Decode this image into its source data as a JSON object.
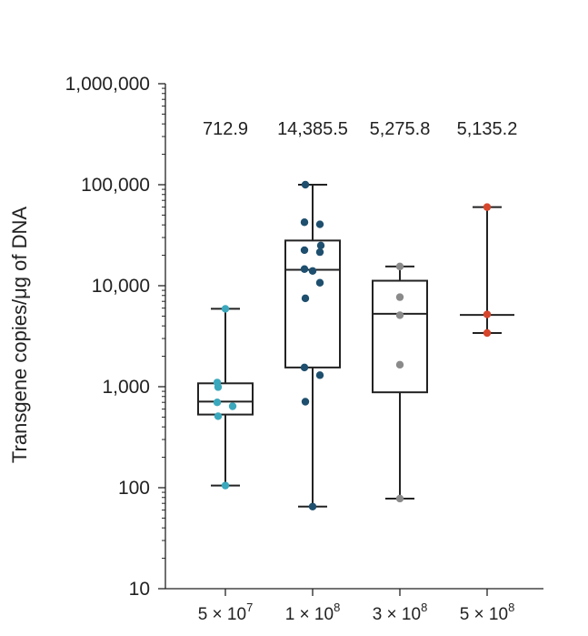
{
  "chart_data": {
    "type": "box",
    "ylabel": "Transgene copies/μg of DNA",
    "yscale": "log",
    "ylim": [
      10,
      1000000
    ],
    "yticks": [
      {
        "value": 10,
        "label": "10"
      },
      {
        "value": 100,
        "label": "100"
      },
      {
        "value": 1000,
        "label": "1,000"
      },
      {
        "value": 10000,
        "label": "10,000"
      },
      {
        "value": 100000,
        "label": "100,000"
      },
      {
        "value": 1000000,
        "label": "1,000,000"
      }
    ],
    "categories": [
      {
        "coef": "5",
        "exp": "7"
      },
      {
        "coef": "1",
        "exp": "8"
      },
      {
        "coef": "3",
        "exp": "8"
      },
      {
        "coef": "5",
        "exp": "8"
      }
    ],
    "medians_labels": [
      "712.9",
      "14,385.5",
      "5,275.8",
      "5,135.2"
    ],
    "groups": [
      {
        "color": "#3aa8bd",
        "box": {
          "whisker_low": 105,
          "q1": 530,
          "median": 712.9,
          "q3": 1080,
          "whisker_high": 5900
        },
        "points": [
          105,
          510,
          640,
          700,
          990,
          1100,
          5900
        ]
      },
      {
        "color": "#1e4f6e",
        "box": {
          "whisker_low": 65,
          "q1": 1550,
          "median": 14385.5,
          "q3": 28000,
          "whisker_high": 100000
        },
        "points": [
          65,
          710,
          1300,
          1550,
          7500,
          10700,
          14000,
          14600,
          21500,
          22500,
          25000,
          40500,
          42500,
          100000
        ]
      },
      {
        "color": "#8a8a8a",
        "box": {
          "whisker_low": 78,
          "q1": 880,
          "median": 5275.8,
          "q3": 11200,
          "whisker_high": 15500
        },
        "points": [
          78,
          1650,
          5100,
          7700,
          15500
        ]
      },
      {
        "color": "#d6462c",
        "box": {
          "whisker_low": 3400,
          "q1": null,
          "median": 5135.2,
          "q3": null,
          "whisker_high": 60000
        },
        "points": [
          3400,
          5200,
          60000
        ]
      }
    ]
  }
}
